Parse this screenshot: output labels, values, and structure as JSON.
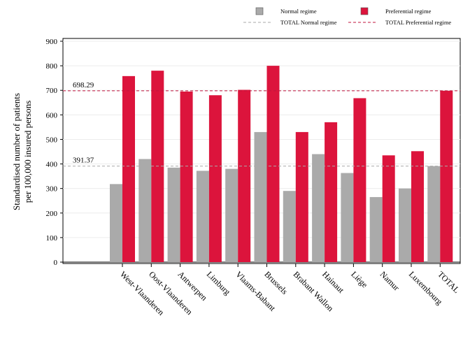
{
  "chart_data": {
    "type": "bar",
    "title": "",
    "xlabel": "",
    "ylabel_lines": [
      "Standardised number of patients",
      "per 100,000 insured persons"
    ],
    "ylim": [
      0,
      900
    ],
    "yticks": [
      0,
      100,
      200,
      300,
      400,
      500,
      600,
      700,
      800,
      900
    ],
    "grid": "horizontal",
    "legend_position": "top-right",
    "categories": [
      "West-Vlaanderen",
      "Oost-Vlaanderen",
      "Antwerpen",
      "Limburg",
      "Vlaams-Babant",
      "Brussels",
      "Brabant Wallon",
      "Hainaut",
      "Liège",
      "Namur",
      "Luxembourg",
      "TOTAL"
    ],
    "series": [
      {
        "name": "Normal regime",
        "color": "#aaaaaa",
        "values": [
          318,
          420,
          385,
          372,
          380,
          530,
          290,
          440,
          363,
          265,
          300,
          391.37
        ]
      },
      {
        "name": "Preferential regime",
        "color": "#dc143c",
        "values": [
          758,
          780,
          695,
          680,
          702,
          800,
          530,
          570,
          668,
          435,
          452,
          698.29
        ]
      }
    ],
    "reference_lines": [
      {
        "name": "TOTAL Normal regime",
        "value": 391.37,
        "label": "391.37",
        "color": "#aaaaaa"
      },
      {
        "name": "TOTAL Preferential regime",
        "value": 698.29,
        "label": "698.29",
        "color": "#c0143c"
      }
    ]
  }
}
